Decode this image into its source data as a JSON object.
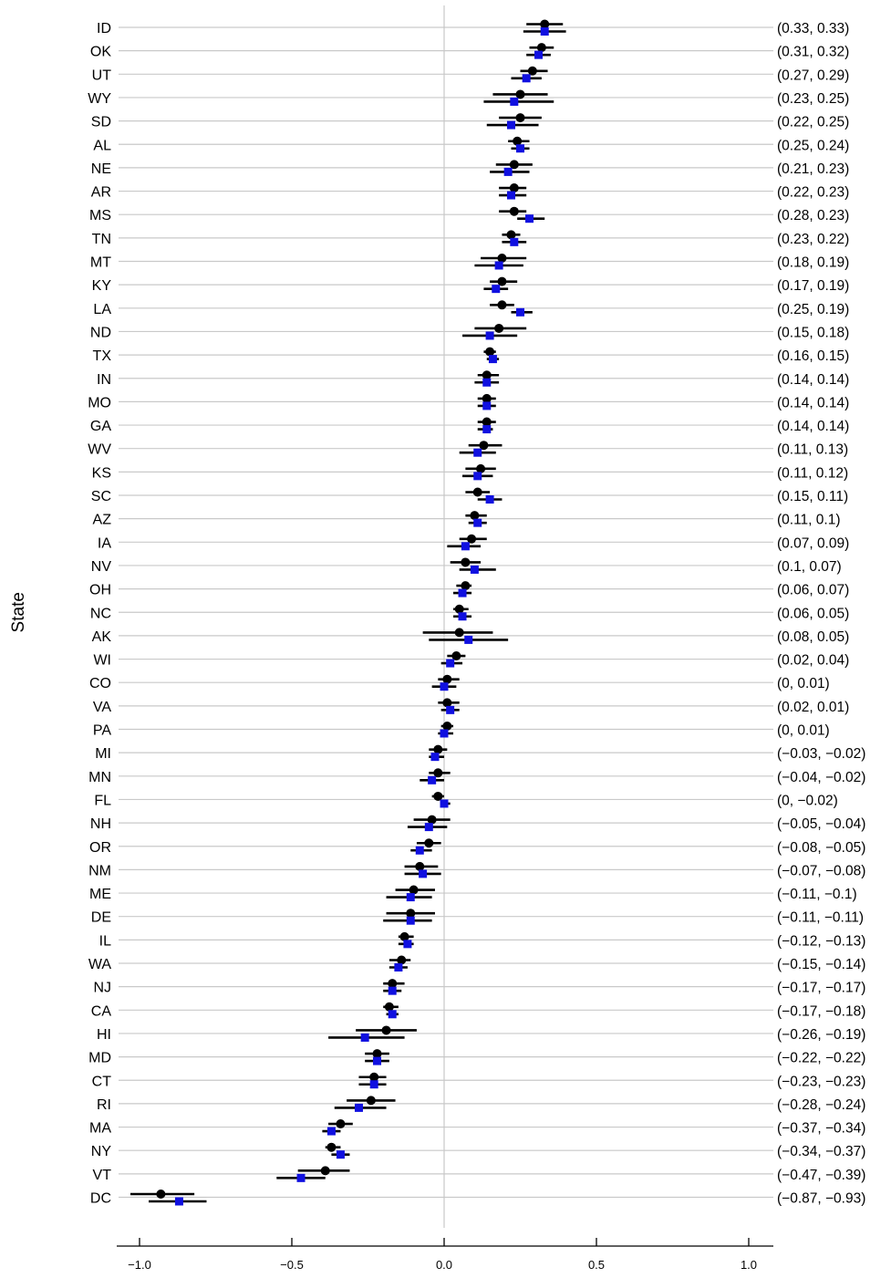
{
  "chart_data": {
    "type": "dot-interval",
    "ylabel": "State",
    "xlabel": "",
    "xlim": [
      -1.0,
      1.0
    ],
    "xticks": [
      -1.0,
      -0.5,
      0.0,
      0.5,
      1.0
    ],
    "xtick_labels": [
      "−1.0",
      "−0.5",
      "0.0",
      "0.5",
      "1.0"
    ],
    "reference_line_x": 0,
    "grid": "horizontal",
    "series": [
      {
        "marker": "circle",
        "color": "#000000"
      },
      {
        "marker": "square",
        "color": "#1010e0"
      }
    ],
    "rows": [
      {
        "state": "ID",
        "label": "(0.33, 0.33)",
        "black": [
          0.33,
          0.27,
          0.39
        ],
        "blue": [
          0.33,
          0.26,
          0.4
        ]
      },
      {
        "state": "OK",
        "label": "(0.31, 0.32)",
        "black": [
          0.32,
          0.28,
          0.36
        ],
        "blue": [
          0.31,
          0.27,
          0.35
        ]
      },
      {
        "state": "UT",
        "label": "(0.27, 0.29)",
        "black": [
          0.29,
          0.25,
          0.34
        ],
        "blue": [
          0.27,
          0.22,
          0.32
        ]
      },
      {
        "state": "WY",
        "label": "(0.23, 0.25)",
        "black": [
          0.25,
          0.16,
          0.34
        ],
        "blue": [
          0.23,
          0.13,
          0.36
        ]
      },
      {
        "state": "SD",
        "label": "(0.22, 0.25)",
        "black": [
          0.25,
          0.18,
          0.32
        ],
        "blue": [
          0.22,
          0.14,
          0.31
        ]
      },
      {
        "state": "AL",
        "label": "(0.25, 0.24)",
        "black": [
          0.24,
          0.21,
          0.28
        ],
        "blue": [
          0.25,
          0.22,
          0.28
        ]
      },
      {
        "state": "NE",
        "label": "(0.21, 0.23)",
        "black": [
          0.23,
          0.17,
          0.29
        ],
        "blue": [
          0.21,
          0.15,
          0.28
        ]
      },
      {
        "state": "AR",
        "label": "(0.22, 0.23)",
        "black": [
          0.23,
          0.18,
          0.27
        ],
        "blue": [
          0.22,
          0.18,
          0.27
        ]
      },
      {
        "state": "MS",
        "label": "(0.28, 0.23)",
        "black": [
          0.23,
          0.18,
          0.27
        ],
        "blue": [
          0.28,
          0.24,
          0.33
        ]
      },
      {
        "state": "TN",
        "label": "(0.23, 0.22)",
        "black": [
          0.22,
          0.19,
          0.25
        ],
        "blue": [
          0.23,
          0.19,
          0.27
        ]
      },
      {
        "state": "MT",
        "label": "(0.18, 0.19)",
        "black": [
          0.19,
          0.12,
          0.27
        ],
        "blue": [
          0.18,
          0.1,
          0.26
        ]
      },
      {
        "state": "KY",
        "label": "(0.17, 0.19)",
        "black": [
          0.19,
          0.15,
          0.24
        ],
        "blue": [
          0.17,
          0.13,
          0.21
        ]
      },
      {
        "state": "LA",
        "label": "(0.25, 0.19)",
        "black": [
          0.19,
          0.15,
          0.23
        ],
        "blue": [
          0.25,
          0.22,
          0.29
        ]
      },
      {
        "state": "ND",
        "label": "(0.15, 0.18)",
        "black": [
          0.18,
          0.1,
          0.27
        ],
        "blue": [
          0.15,
          0.06,
          0.24
        ]
      },
      {
        "state": "TX",
        "label": "(0.16, 0.15)",
        "black": [
          0.15,
          0.13,
          0.17
        ],
        "blue": [
          0.16,
          0.14,
          0.18
        ]
      },
      {
        "state": "IN",
        "label": "(0.14, 0.14)",
        "black": [
          0.14,
          0.11,
          0.18
        ],
        "blue": [
          0.14,
          0.1,
          0.18
        ]
      },
      {
        "state": "MO",
        "label": "(0.14, 0.14)",
        "black": [
          0.14,
          0.11,
          0.17
        ],
        "blue": [
          0.14,
          0.11,
          0.17
        ]
      },
      {
        "state": "GA",
        "label": "(0.14, 0.14)",
        "black": [
          0.14,
          0.11,
          0.17
        ],
        "blue": [
          0.14,
          0.11,
          0.16
        ]
      },
      {
        "state": "WV",
        "label": "(0.11, 0.13)",
        "black": [
          0.13,
          0.08,
          0.19
        ],
        "blue": [
          0.11,
          0.05,
          0.17
        ]
      },
      {
        "state": "KS",
        "label": "(0.11, 0.12)",
        "black": [
          0.12,
          0.07,
          0.17
        ],
        "blue": [
          0.11,
          0.06,
          0.16
        ]
      },
      {
        "state": "SC",
        "label": "(0.15, 0.11)",
        "black": [
          0.11,
          0.07,
          0.15
        ],
        "blue": [
          0.15,
          0.11,
          0.19
        ]
      },
      {
        "state": "AZ",
        "label": "(0.11, 0.1)",
        "black": [
          0.1,
          0.07,
          0.14
        ],
        "blue": [
          0.11,
          0.08,
          0.14
        ]
      },
      {
        "state": "IA",
        "label": "(0.07, 0.09)",
        "black": [
          0.09,
          0.05,
          0.14
        ],
        "blue": [
          0.07,
          0.01,
          0.12
        ]
      },
      {
        "state": "NV",
        "label": "(0.1, 0.07)",
        "black": [
          0.07,
          0.02,
          0.12
        ],
        "blue": [
          0.1,
          0.05,
          0.17
        ]
      },
      {
        "state": "OH",
        "label": "(0.06, 0.07)",
        "black": [
          0.07,
          0.04,
          0.09
        ],
        "blue": [
          0.06,
          0.03,
          0.09
        ]
      },
      {
        "state": "NC",
        "label": "(0.06, 0.05)",
        "black": [
          0.05,
          0.03,
          0.08
        ],
        "blue": [
          0.06,
          0.03,
          0.09
        ]
      },
      {
        "state": "AK",
        "label": "(0.08, 0.05)",
        "black": [
          0.05,
          -0.07,
          0.16
        ],
        "blue": [
          0.08,
          -0.05,
          0.21
        ]
      },
      {
        "state": "WI",
        "label": "(0.02, 0.04)",
        "black": [
          0.04,
          0.01,
          0.07
        ],
        "blue": [
          0.02,
          -0.01,
          0.06
        ]
      },
      {
        "state": "CO",
        "label": "(0, 0.01)",
        "black": [
          0.01,
          -0.02,
          0.05
        ],
        "blue": [
          0.0,
          -0.04,
          0.04
        ]
      },
      {
        "state": "VA",
        "label": "(0.02, 0.01)",
        "black": [
          0.01,
          -0.02,
          0.05
        ],
        "blue": [
          0.02,
          -0.01,
          0.05
        ]
      },
      {
        "state": "PA",
        "label": "(0, 0.01)",
        "black": [
          0.01,
          -0.01,
          0.03
        ],
        "blue": [
          0.0,
          -0.02,
          0.03
        ]
      },
      {
        "state": "MI",
        "label": "(−0.03, −0.02)",
        "black": [
          -0.02,
          -0.05,
          0.01
        ],
        "blue": [
          -0.03,
          -0.05,
          0.0
        ]
      },
      {
        "state": "MN",
        "label": "(−0.04, −0.02)",
        "black": [
          -0.02,
          -0.05,
          0.02
        ],
        "blue": [
          -0.04,
          -0.08,
          0.0
        ]
      },
      {
        "state": "FL",
        "label": "(0, −0.02)",
        "black": [
          -0.02,
          -0.04,
          0.0
        ],
        "blue": [
          0.0,
          -0.01,
          0.02
        ]
      },
      {
        "state": "NH",
        "label": "(−0.05, −0.04)",
        "black": [
          -0.04,
          -0.1,
          0.02
        ],
        "blue": [
          -0.05,
          -0.12,
          0.01
        ]
      },
      {
        "state": "OR",
        "label": "(−0.08, −0.05)",
        "black": [
          -0.05,
          -0.09,
          -0.01
        ],
        "blue": [
          -0.08,
          -0.11,
          -0.04
        ]
      },
      {
        "state": "NM",
        "label": "(−0.07, −0.08)",
        "black": [
          -0.08,
          -0.13,
          -0.02
        ],
        "blue": [
          -0.07,
          -0.13,
          -0.01
        ]
      },
      {
        "state": "ME",
        "label": "(−0.11, −0.1)",
        "black": [
          -0.1,
          -0.16,
          -0.03
        ],
        "blue": [
          -0.11,
          -0.19,
          -0.04
        ]
      },
      {
        "state": "DE",
        "label": "(−0.11, −0.11)",
        "black": [
          -0.11,
          -0.19,
          -0.03
        ],
        "blue": [
          -0.11,
          -0.2,
          -0.04
        ]
      },
      {
        "state": "IL",
        "label": "(−0.12, −0.13)",
        "black": [
          -0.13,
          -0.15,
          -0.1
        ],
        "blue": [
          -0.12,
          -0.15,
          -0.1
        ]
      },
      {
        "state": "WA",
        "label": "(−0.15, −0.14)",
        "black": [
          -0.14,
          -0.18,
          -0.11
        ],
        "blue": [
          -0.15,
          -0.18,
          -0.12
        ]
      },
      {
        "state": "NJ",
        "label": "(−0.17, −0.17)",
        "black": [
          -0.17,
          -0.2,
          -0.13
        ],
        "blue": [
          -0.17,
          -0.2,
          -0.14
        ]
      },
      {
        "state": "CA",
        "label": "(−0.17, −0.18)",
        "black": [
          -0.18,
          -0.2,
          -0.15
        ],
        "blue": [
          -0.17,
          -0.19,
          -0.15
        ]
      },
      {
        "state": "HI",
        "label": "(−0.26, −0.19)",
        "black": [
          -0.19,
          -0.29,
          -0.09
        ],
        "blue": [
          -0.26,
          -0.38,
          -0.13
        ]
      },
      {
        "state": "MD",
        "label": "(−0.22, −0.22)",
        "black": [
          -0.22,
          -0.26,
          -0.18
        ],
        "blue": [
          -0.22,
          -0.26,
          -0.18
        ]
      },
      {
        "state": "CT",
        "label": "(−0.23, −0.23)",
        "black": [
          -0.23,
          -0.28,
          -0.19
        ],
        "blue": [
          -0.23,
          -0.28,
          -0.19
        ]
      },
      {
        "state": "RI",
        "label": "(−0.28, −0.24)",
        "black": [
          -0.24,
          -0.32,
          -0.16
        ],
        "blue": [
          -0.28,
          -0.36,
          -0.19
        ]
      },
      {
        "state": "MA",
        "label": "(−0.37, −0.34)",
        "black": [
          -0.34,
          -0.38,
          -0.3
        ],
        "blue": [
          -0.37,
          -0.4,
          -0.34
        ]
      },
      {
        "state": "NY",
        "label": "(−0.34, −0.37)",
        "black": [
          -0.37,
          -0.39,
          -0.34
        ],
        "blue": [
          -0.34,
          -0.37,
          -0.31
        ]
      },
      {
        "state": "VT",
        "label": "(−0.47, −0.39)",
        "black": [
          -0.39,
          -0.48,
          -0.31
        ],
        "blue": [
          -0.47,
          -0.55,
          -0.39
        ]
      },
      {
        "state": "DC",
        "label": "(−0.87, −0.93)",
        "black": [
          -0.93,
          -1.03,
          -0.82
        ],
        "blue": [
          -0.87,
          -0.97,
          -0.78
        ]
      }
    ]
  }
}
